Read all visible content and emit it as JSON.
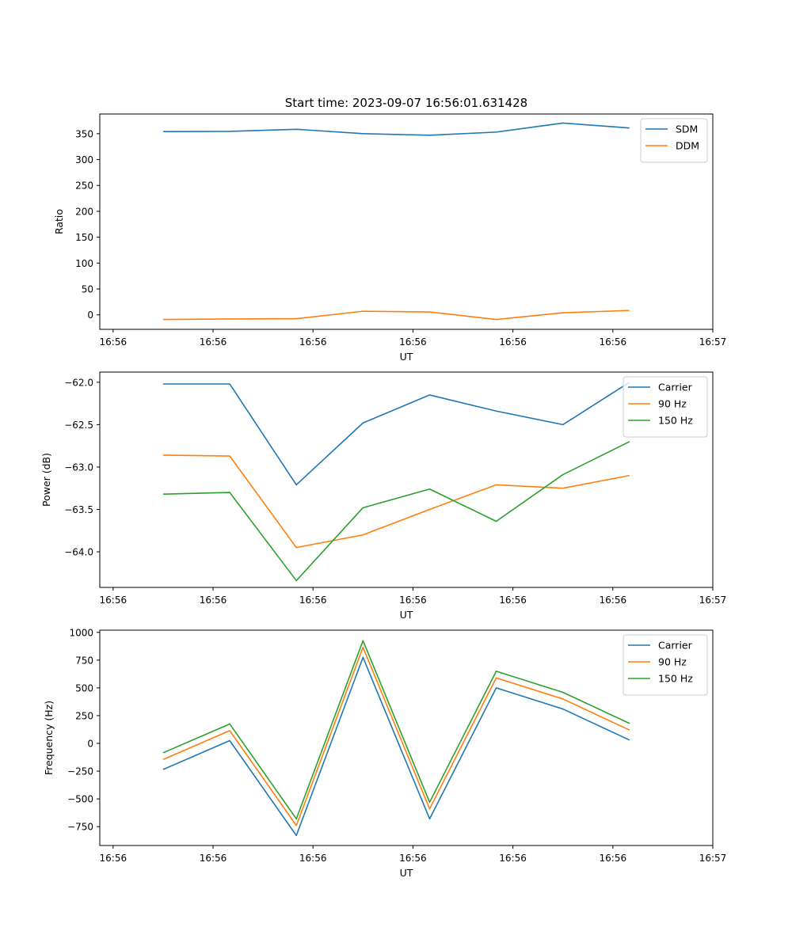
{
  "chart_data": [
    {
      "type": "line",
      "title": "Start time: 2023-09-07 16:56:01.631428",
      "xlabel": "UT",
      "ylabel": "Ratio",
      "ylim": [
        -28,
        388
      ],
      "yticks": [
        0,
        50,
        100,
        150,
        200,
        250,
        300,
        350
      ],
      "ytick_labels": [
        "0",
        "50",
        "100",
        "150",
        "200",
        "250",
        "300",
        "350"
      ],
      "xlim": [
        -0.2,
        9.0
      ],
      "xticks": [
        0,
        1.5,
        3,
        4.5,
        6,
        7.5,
        9
      ],
      "xtick_labels": [
        "16:56",
        "16:56",
        "16:56",
        "16:56",
        "16:56",
        "16:56",
        "16:57"
      ],
      "x": [
        0.75,
        1.75,
        2.75,
        3.75,
        4.75,
        5.75,
        6.75,
        7.75
      ],
      "legend": "top-right",
      "series": [
        {
          "name": "SDM",
          "color": "#1f77b4",
          "values": [
            354,
            354.5,
            358.5,
            350,
            347,
            353,
            370.5,
            361
          ]
        },
        {
          "name": "DDM",
          "color": "#ff7f0e",
          "values": [
            -9,
            -8,
            -7.5,
            7,
            5.5,
            -9,
            4,
            8.5
          ]
        }
      ]
    },
    {
      "type": "line",
      "title": "",
      "xlabel": "UT",
      "ylabel": "Power (dB)",
      "ylim": [
        -64.42,
        -61.88
      ],
      "yticks": [
        -64.0,
        -63.5,
        -63.0,
        -62.5,
        -62.0
      ],
      "ytick_labels": [
        "−64.0",
        "−63.5",
        "−63.0",
        "−62.5",
        "−62.0"
      ],
      "xlim": [
        -0.2,
        9.0
      ],
      "xticks": [
        0,
        1.5,
        3,
        4.5,
        6,
        7.5,
        9
      ],
      "xtick_labels": [
        "16:56",
        "16:56",
        "16:56",
        "16:56",
        "16:56",
        "16:56",
        "16:57"
      ],
      "x": [
        0.75,
        1.75,
        2.75,
        3.75,
        4.75,
        5.75,
        6.75,
        7.75
      ],
      "legend": "top-right",
      "series": [
        {
          "name": "Carrier",
          "color": "#1f77b4",
          "values": [
            -62.02,
            -62.02,
            -63.21,
            -62.48,
            -62.15,
            -62.34,
            -62.5,
            -62.0
          ]
        },
        {
          "name": "90 Hz",
          "color": "#ff7f0e",
          "values": [
            -62.86,
            -62.87,
            -63.95,
            -63.8,
            -63.5,
            -63.21,
            -63.25,
            -63.1
          ]
        },
        {
          "name": "150 Hz",
          "color": "#2ca02c",
          "values": [
            -63.32,
            -63.3,
            -64.34,
            -63.48,
            -63.26,
            -63.64,
            -63.09,
            -62.7
          ]
        }
      ]
    },
    {
      "type": "line",
      "title": "",
      "xlabel": "UT",
      "ylabel": "Frequency (Hz)",
      "ylim": [
        -920,
        1020
      ],
      "yticks": [
        -750,
        -500,
        -250,
        0,
        250,
        500,
        750,
        1000
      ],
      "ytick_labels": [
        "−750",
        "−500",
        "−250",
        "0",
        "250",
        "500",
        "750",
        "1000"
      ],
      "xlim": [
        -0.2,
        9.0
      ],
      "xticks": [
        0,
        1.5,
        3,
        4.5,
        6,
        7.5,
        9
      ],
      "xtick_labels": [
        "16:56",
        "16:56",
        "16:56",
        "16:56",
        "16:56",
        "16:56",
        "16:57"
      ],
      "x": [
        0.75,
        1.75,
        2.75,
        3.75,
        4.75,
        5.75,
        6.75,
        7.75
      ],
      "legend": "top-right",
      "series": [
        {
          "name": "Carrier",
          "color": "#1f77b4",
          "values": [
            -235,
            25,
            -830,
            775,
            -680,
            500,
            310,
            30
          ]
        },
        {
          "name": "90 Hz",
          "color": "#ff7f0e",
          "values": [
            -145,
            115,
            -740,
            865,
            -590,
            590,
            400,
            120
          ]
        },
        {
          "name": "150 Hz",
          "color": "#2ca02c",
          "values": [
            -85,
            175,
            -680,
            925,
            -530,
            650,
            460,
            180
          ]
        }
      ]
    }
  ]
}
